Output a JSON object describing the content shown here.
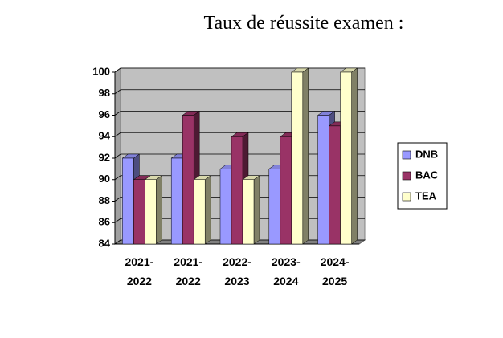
{
  "chart_data": {
    "type": "bar",
    "title": "Taux de réussite examen :",
    "categories": [
      "2021-2022",
      "2021-2022",
      "2022-2023",
      "2023-2024",
      "2024-2025"
    ],
    "series": [
      {
        "name": "DNB",
        "color": "#9999ff",
        "values": [
          92,
          92,
          91,
          91,
          96
        ]
      },
      {
        "name": "BAC",
        "color": "#993366",
        "values": [
          90,
          96,
          94,
          94,
          95
        ]
      },
      {
        "name": "TEA",
        "color": "#ffffcc",
        "values": [
          90,
          90,
          90,
          100,
          100
        ]
      }
    ],
    "ylim": [
      84,
      100
    ],
    "yticks": [
      84,
      86,
      88,
      90,
      92,
      94,
      96,
      98,
      100
    ],
    "grid": true,
    "legend": "right"
  }
}
